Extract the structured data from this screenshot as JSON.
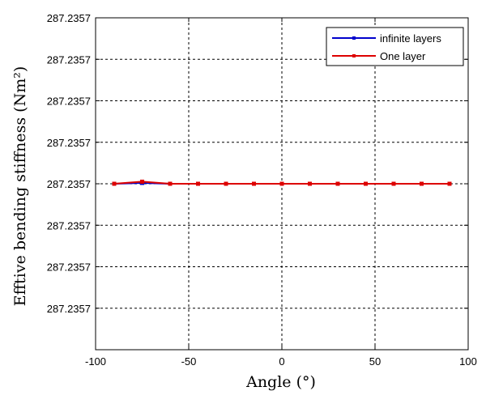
{
  "chart_data": {
    "type": "line",
    "title": "",
    "xlabel": "Angle (°)",
    "ylabel": "Efftive bending stiffness (Nm²)",
    "xlim": [
      -100,
      100
    ],
    "x_ticks": [
      -100,
      -50,
      0,
      50,
      100
    ],
    "y_tick_labels": [
      "287.2357",
      "287.2357",
      "287.2357",
      "287.2357",
      "287.2357",
      "287.2357",
      "287.2357",
      "287.2357"
    ],
    "grid": true,
    "legend_position": "top-right",
    "x": [
      -90,
      -75,
      -60,
      -45,
      -30,
      -15,
      0,
      15,
      30,
      45,
      60,
      75,
      90
    ],
    "series": [
      {
        "name": "infinite layers",
        "color": "#0000cc",
        "marker": "square",
        "values": [
          0,
          0.02,
          0,
          0,
          0,
          0,
          0,
          0,
          0,
          0,
          0,
          0,
          0
        ]
      },
      {
        "name": "One layer",
        "color": "#dd0000",
        "marker": "square",
        "values": [
          0,
          0.05,
          0,
          0,
          0,
          0,
          0,
          0,
          0,
          0,
          0,
          0,
          0
        ]
      }
    ]
  }
}
